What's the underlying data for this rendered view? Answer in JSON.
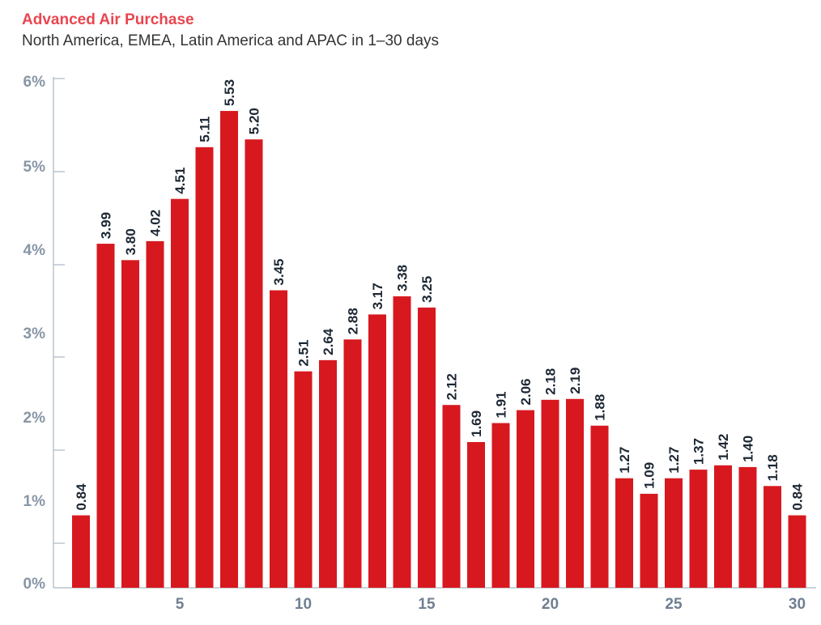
{
  "chart_data": {
    "type": "bar",
    "title": "Advanced Air Purchase",
    "subtitle": "North America, EMEA, Latin America and APAC in 1–30 days",
    "xlabel": "",
    "ylabel": "",
    "categories": [
      1,
      2,
      3,
      4,
      5,
      6,
      7,
      8,
      9,
      10,
      11,
      12,
      13,
      14,
      15,
      16,
      17,
      18,
      19,
      20,
      21,
      22,
      23,
      24,
      25,
      26,
      27,
      28,
      29,
      30
    ],
    "values": [
      0.84,
      3.99,
      3.8,
      4.02,
      4.51,
      5.11,
      5.53,
      5.2,
      3.45,
      2.51,
      2.64,
      2.88,
      3.17,
      3.38,
      3.25,
      2.12,
      1.69,
      1.91,
      2.06,
      2.18,
      2.19,
      1.88,
      1.27,
      1.09,
      1.27,
      1.37,
      1.42,
      1.4,
      1.18,
      0.84
    ],
    "data_labels": [
      "0.84",
      "3.99",
      "3.80",
      "4.02",
      "4.51",
      "5.11",
      "5.53",
      "5.20",
      "3.45",
      "2.51",
      "2.64",
      "2.88",
      "3.17",
      "3.38",
      "3.25",
      "2.12",
      "1.69",
      "1.91",
      "2.06",
      "2.18",
      "2.19",
      "1.88",
      "1.27",
      "1.09",
      "1.27",
      "1.37",
      "1.42",
      "1.40",
      "1.18",
      "0.84"
    ],
    "x_tick_labels": [
      "5",
      "10",
      "15",
      "20",
      "25",
      "30"
    ],
    "x_ticks": [
      5,
      10,
      15,
      20,
      25,
      30
    ],
    "y_tick_labels": [
      "0%",
      "1%",
      "2%",
      "3%",
      "4%",
      "5%",
      "6%"
    ],
    "ylim": [
      0,
      6
    ],
    "grid": false,
    "legend": "none",
    "bar_color": "#d7191f",
    "axis_color": "#a9b6c4"
  }
}
